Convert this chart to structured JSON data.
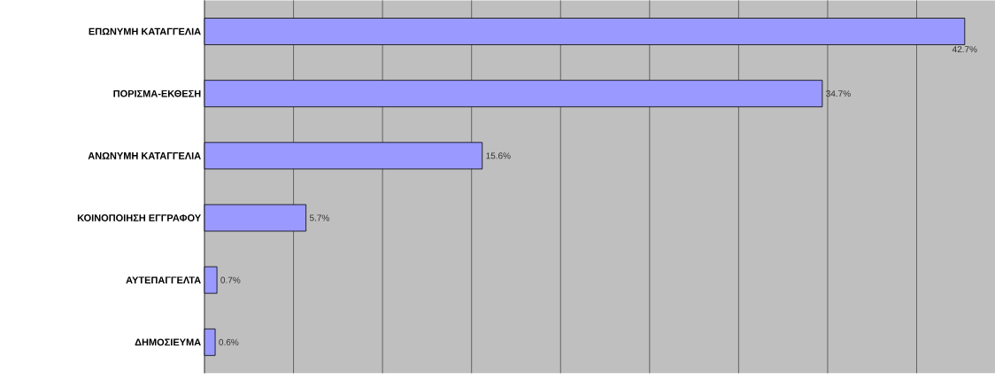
{
  "chart_data": {
    "type": "bar",
    "orientation": "horizontal",
    "categories": [
      "ΕΠΩΝΥΜΗ ΚΑΤΑΓΓΕΛΙΑ",
      "ΠΟΡΙΣΜΑ-ΕΚΘΕΣΗ",
      "ΑΝΩΝΥΜΗ ΚΑΤΑΓΓΕΛΙΑ",
      "ΚΟΙΝΟΠΟΙΗΣΗ ΕΓΓΡΑΦΟΥ",
      "ΑΥΤΕΠΑΓΓΕΛΤΑ",
      "ΔΗΜΟΣΙΕΥΜΑ"
    ],
    "values": [
      42.7,
      34.7,
      15.6,
      5.7,
      0.7,
      0.6
    ],
    "value_labels": [
      "42.7%",
      "34.7%",
      "15.6%",
      "5.7%",
      "0.7%",
      "0.6%"
    ],
    "color": "#9999ff",
    "xlim": [
      0,
      44.4
    ],
    "xticks": [
      {
        "value": 0,
        "label": null
      },
      {
        "value": 5,
        "label": null
      },
      {
        "value": 10,
        "label": null
      },
      {
        "value": 15,
        "label": null
      },
      {
        "value": 20,
        "label": null
      },
      {
        "value": 25,
        "label": null
      },
      {
        "value": 30,
        "label": null
      },
      {
        "value": 35,
        "label": null
      },
      {
        "value": 40,
        "label": null
      }
    ],
    "tick_labels": "y",
    "grid": "x"
  }
}
